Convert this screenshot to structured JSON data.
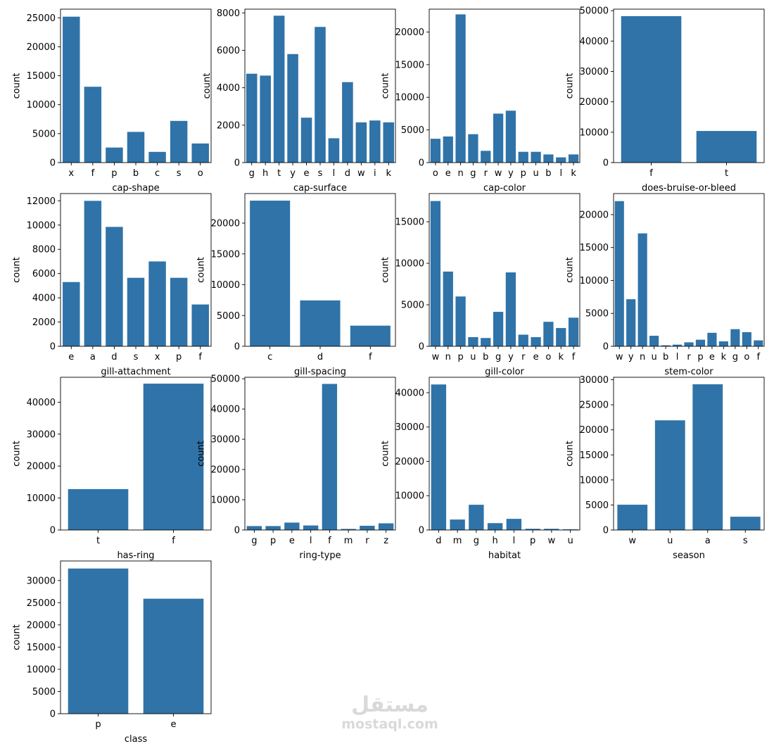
{
  "chart_data": [
    {
      "type": "bar",
      "xlabel": "cap-shape",
      "ylabel": "count",
      "ylim": [
        0,
        26500
      ],
      "yticks": [
        0,
        5000,
        10000,
        15000,
        20000,
        25000
      ],
      "categories": [
        "x",
        "f",
        "p",
        "b",
        "c",
        "s",
        "o"
      ],
      "values": [
        25200,
        13100,
        2600,
        5300,
        1850,
        7200,
        3300
      ]
    },
    {
      "type": "bar",
      "xlabel": "cap-surface",
      "ylabel": "count",
      "ylim": [
        0,
        8200
      ],
      "yticks": [
        0,
        2000,
        4000,
        6000,
        8000
      ],
      "categories": [
        "g",
        "h",
        "t",
        "y",
        "e",
        "s",
        "l",
        "d",
        "w",
        "i",
        "k"
      ],
      "values": [
        4750,
        4650,
        7850,
        5800,
        2400,
        7250,
        1300,
        4300,
        2150,
        2250,
        2150
      ]
    },
    {
      "type": "bar",
      "xlabel": "cap-color",
      "ylabel": "count",
      "ylim": [
        0,
        23500
      ],
      "yticks": [
        0,
        5000,
        10000,
        15000,
        20000
      ],
      "categories": [
        "o",
        "e",
        "n",
        "g",
        "r",
        "w",
        "y",
        "p",
        "u",
        "b",
        "l",
        "k"
      ],
      "values": [
        3650,
        4000,
        22700,
        4350,
        1800,
        7500,
        7950,
        1650,
        1650,
        1250,
        800,
        1250
      ]
    },
    {
      "type": "bar",
      "xlabel": "does-bruise-or-bleed",
      "ylabel": "count",
      "ylim": [
        0,
        50500
      ],
      "yticks": [
        0,
        10000,
        20000,
        30000,
        40000,
        50000
      ],
      "categories": [
        "f",
        "t"
      ],
      "values": [
        48200,
        10400
      ]
    },
    {
      "type": "bar",
      "xlabel": "gill-attachment",
      "ylabel": "count",
      "ylim": [
        0,
        12600
      ],
      "yticks": [
        0,
        2000,
        4000,
        6000,
        8000,
        10000,
        12000
      ],
      "categories": [
        "e",
        "a",
        "d",
        "s",
        "x",
        "p",
        "f"
      ],
      "values": [
        5300,
        12000,
        9850,
        5650,
        7000,
        5650,
        3450
      ]
    },
    {
      "type": "bar",
      "xlabel": "gill-spacing",
      "ylabel": "count",
      "ylim": [
        0,
        24800
      ],
      "yticks": [
        0,
        5000,
        10000,
        15000,
        20000
      ],
      "categories": [
        "c",
        "d",
        "f"
      ],
      "values": [
        23650,
        7450,
        3350
      ]
    },
    {
      "type": "bar",
      "xlabel": "gill-color",
      "ylabel": "count",
      "ylim": [
        0,
        18400
      ],
      "yticks": [
        0,
        5000,
        10000,
        15000
      ],
      "categories": [
        "w",
        "n",
        "p",
        "u",
        "b",
        "g",
        "y",
        "r",
        "e",
        "o",
        "k",
        "f"
      ],
      "values": [
        17500,
        9000,
        6000,
        1100,
        1000,
        4150,
        8900,
        1400,
        1100,
        2950,
        2200,
        3450
      ]
    },
    {
      "type": "bar",
      "xlabel": "stem-color",
      "ylabel": "count",
      "ylim": [
        0,
        23200
      ],
      "yticks": [
        0,
        5000,
        10000,
        15000,
        20000
      ],
      "categories": [
        "w",
        "y",
        "n",
        "u",
        "b",
        "l",
        "r",
        "p",
        "e",
        "k",
        "g",
        "o",
        "f"
      ],
      "values": [
        22050,
        7150,
        17150,
        1600,
        150,
        250,
        600,
        1000,
        2050,
        750,
        2600,
        2150,
        900
      ]
    },
    {
      "type": "bar",
      "xlabel": "has-ring",
      "ylabel": "count",
      "ylim": [
        0,
        47800
      ],
      "yticks": [
        0,
        10000,
        20000,
        30000,
        40000
      ],
      "categories": [
        "t",
        "f"
      ],
      "values": [
        12800,
        45800
      ]
    },
    {
      "type": "bar",
      "xlabel": "ring-type",
      "ylabel": "count",
      "ylim": [
        0,
        50500
      ],
      "yticks": [
        0,
        10000,
        20000,
        30000,
        40000,
        50000
      ],
      "categories": [
        "g",
        "p",
        "e",
        "l",
        "f",
        "m",
        "r",
        "z"
      ],
      "values": [
        1300,
        1300,
        2450,
        1500,
        48300,
        350,
        1400,
        2200
      ]
    },
    {
      "type": "bar",
      "xlabel": "habitat",
      "ylabel": "count",
      "ylim": [
        0,
        44500
      ],
      "yticks": [
        0,
        10000,
        20000,
        30000,
        40000
      ],
      "categories": [
        "d",
        "m",
        "g",
        "h",
        "l",
        "p",
        "w",
        "u"
      ],
      "values": [
        42400,
        3050,
        7350,
        2000,
        3250,
        350,
        350,
        200
      ]
    },
    {
      "type": "bar",
      "xlabel": "season",
      "ylabel": "count",
      "ylim": [
        0,
        30500
      ],
      "yticks": [
        0,
        5000,
        10000,
        15000,
        20000,
        25000,
        30000
      ],
      "categories": [
        "w",
        "u",
        "a",
        "s"
      ],
      "values": [
        5050,
        21900,
        29100,
        2650
      ]
    },
    {
      "type": "bar",
      "xlabel": "class",
      "ylabel": "count",
      "ylim": [
        0,
        34400
      ],
      "yticks": [
        0,
        5000,
        10000,
        15000,
        20000,
        25000,
        30000
      ],
      "categories": [
        "p",
        "e"
      ],
      "values": [
        32700,
        25900
      ]
    }
  ],
  "colors": {
    "bar": "#2f73a8",
    "axis": "#000000",
    "text": "#000000"
  },
  "watermark": {
    "logo_text": "مستقل",
    "site": "mostaql.com"
  }
}
